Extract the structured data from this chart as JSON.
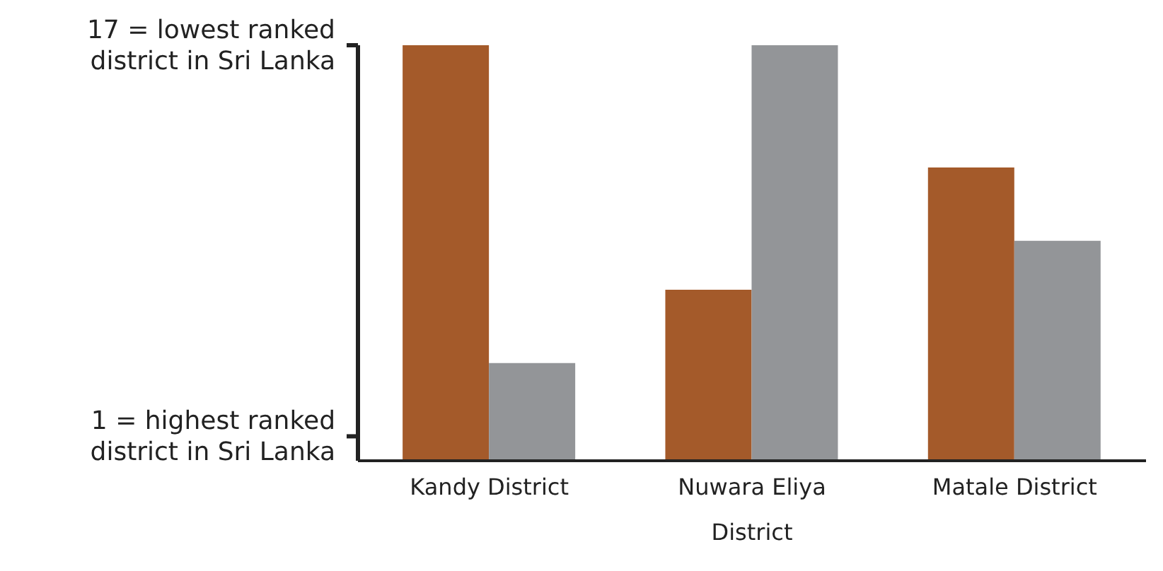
{
  "chart_data": {
    "type": "bar",
    "categories": [
      "Kandy District",
      "Nuwara Eliya District",
      "Matale District"
    ],
    "series": [
      {
        "color": "#a45a2a",
        "values": [
          17,
          7,
          12
        ]
      },
      {
        "color": "#939598",
        "values": [
          4,
          17,
          9
        ]
      }
    ],
    "ylim": [
      0,
      17
    ],
    "yticks": [
      {
        "value": 1,
        "label": "1 = highest ranked district in Sri Lanka"
      },
      {
        "value": 17,
        "label": "17 = lowest ranked district in Sri Lanka"
      }
    ],
    "grid": false,
    "legend": false
  }
}
